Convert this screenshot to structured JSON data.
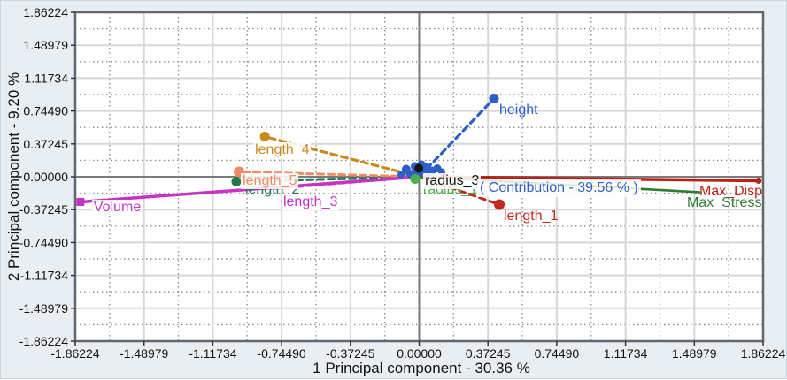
{
  "figure": {
    "bg_color": "#e9eef3",
    "plot_bg": "#ffffff",
    "frame_color": "#64686c",
    "grid_major_color": "#d7d7d7",
    "grid_minor_color": "#8e8e8e",
    "zero_line_color": "#7b7b7b"
  },
  "chart_data": {
    "type": "scatter",
    "subtype": "pca-loading-biplot",
    "xlabel": "1 Principal component - 30.36 %",
    "ylabel": "2 Principal component - 9.20 %",
    "xlim": [
      -1.86224,
      1.86224
    ],
    "ylim": [
      -1.86224,
      1.86224
    ],
    "grid": "major-solid-minor-dotted",
    "x_tick_labels": [
      "-1.86224",
      "-1.48979",
      "-1.11734",
      "-0.74490",
      "-0.37245",
      "0.00000",
      "0.37245",
      "0.74490",
      "1.11734",
      "1.48979",
      "1.86224"
    ],
    "y_tick_labels": [
      "1.86224",
      "1.48979",
      "1.11734",
      "0.74490",
      "0.37245",
      "0.00000",
      "-0.37245",
      "-0.74490",
      "-1.11734",
      "-1.48979",
      "-1.86224"
    ],
    "annotation": {
      "text": "( Contribution - 39.56 % )",
      "x": 0.314,
      "y": -0.03,
      "color": "#2e5fc7"
    },
    "series": [
      {
        "name": "length_2",
        "x": -0.99,
        "y": -0.055,
        "color": "#1f7a4d",
        "line": "dashed",
        "width": 3,
        "marker": "circle",
        "size": 5.5,
        "label_dx": 8,
        "label_dy": 1,
        "label_bg": false
      },
      {
        "name": "radius_1",
        "x": -0.022,
        "y": -0.025,
        "color": "#4cb04c",
        "line": "none",
        "width": 0,
        "marker": "circle",
        "size": 5.5,
        "label_dx": 7,
        "label_dy": 4,
        "label_bg": false
      },
      {
        "name": "length_3",
        "x": -0.803,
        "y": -0.135,
        "color": "#cb2fcb",
        "line": "dashed",
        "width": 3,
        "marker": "none",
        "size": 0,
        "label_dx": 12,
        "label_dy": 7,
        "label_bg": true
      },
      {
        "name": "length_5",
        "x": -0.975,
        "y": 0.055,
        "color": "#f18a63",
        "line": "dashed",
        "width": 3,
        "marker": "circle",
        "size": 6,
        "label_dx": 2,
        "label_dy": 1,
        "label_bg": true
      },
      {
        "name": "length_4",
        "x": -0.836,
        "y": 0.455,
        "color": "#c98a1b",
        "line": "dashed",
        "width": 3.2,
        "marker": "circle",
        "size": 5.5,
        "label_dx": -13,
        "label_dy": 6,
        "label_bg": true
      },
      {
        "name": "Volume",
        "x": -1.834,
        "y": -0.285,
        "color": "#c633c6",
        "line": "solid",
        "width": 3.5,
        "marker": "square",
        "size": 9,
        "label_dx": 13,
        "label_dy": -2,
        "label_bg": true
      },
      {
        "name": "height",
        "x": 0.405,
        "y": 0.886,
        "color": "#2e5fc7",
        "line": "dashed",
        "width": 3.2,
        "marker": "circle",
        "size": 5.5,
        "label_dx": 4,
        "label_dy": 4,
        "label_bg": false
      },
      {
        "name": "length_1",
        "x": 0.434,
        "y": -0.315,
        "color": "#c2281e",
        "line": "dashed",
        "width": 3,
        "marker": "circle",
        "size": 6,
        "label_dx": 3,
        "label_dy": 5,
        "label_bg": false
      },
      {
        "name": "Max_Disp",
        "x": 1.838,
        "y": -0.045,
        "color": "#bf2015",
        "line": "solid",
        "width": 3.5,
        "marker": "circle",
        "size": 3.5,
        "label_dx": -69,
        "label_dy": 4,
        "label_bg": false
      },
      {
        "name": "Max_Stress",
        "x": 1.517,
        "y": -0.175,
        "color": "#2e7d32",
        "line": "solid",
        "width": 2.6,
        "marker": "none",
        "size": 0,
        "label_dx": -16,
        "label_dy": 4,
        "label_bg": false
      },
      {
        "name": "radius_3",
        "x": -0.002,
        "y": 0.095,
        "color": "#141414",
        "line": "none",
        "width": 0,
        "marker": "circle",
        "size": 5,
        "label_dx": 5,
        "label_dy": 5,
        "label_bg": true
      }
    ],
    "origin_cluster": {
      "color": "#2e5fc7",
      "points": [
        {
          "x": -0.098,
          "y": 0.025,
          "r": 4
        },
        {
          "x": -0.07,
          "y": 0.085,
          "r": 5
        },
        {
          "x": -0.05,
          "y": 0.035,
          "r": 4.5
        },
        {
          "x": -0.022,
          "y": 0.115,
          "r": 5
        },
        {
          "x": 0.012,
          "y": 0.135,
          "r": 5
        },
        {
          "x": 0.036,
          "y": 0.095,
          "r": 6
        },
        {
          "x": 0.07,
          "y": 0.065,
          "r": 5
        },
        {
          "x": 0.098,
          "y": 0.095,
          "r": 4.5
        },
        {
          "x": 0.122,
          "y": 0.055,
          "r": 4
        },
        {
          "x": 0.055,
          "y": 0.025,
          "r": 4.5
        },
        {
          "x": -0.012,
          "y": 0.045,
          "r": 6
        }
      ]
    }
  }
}
